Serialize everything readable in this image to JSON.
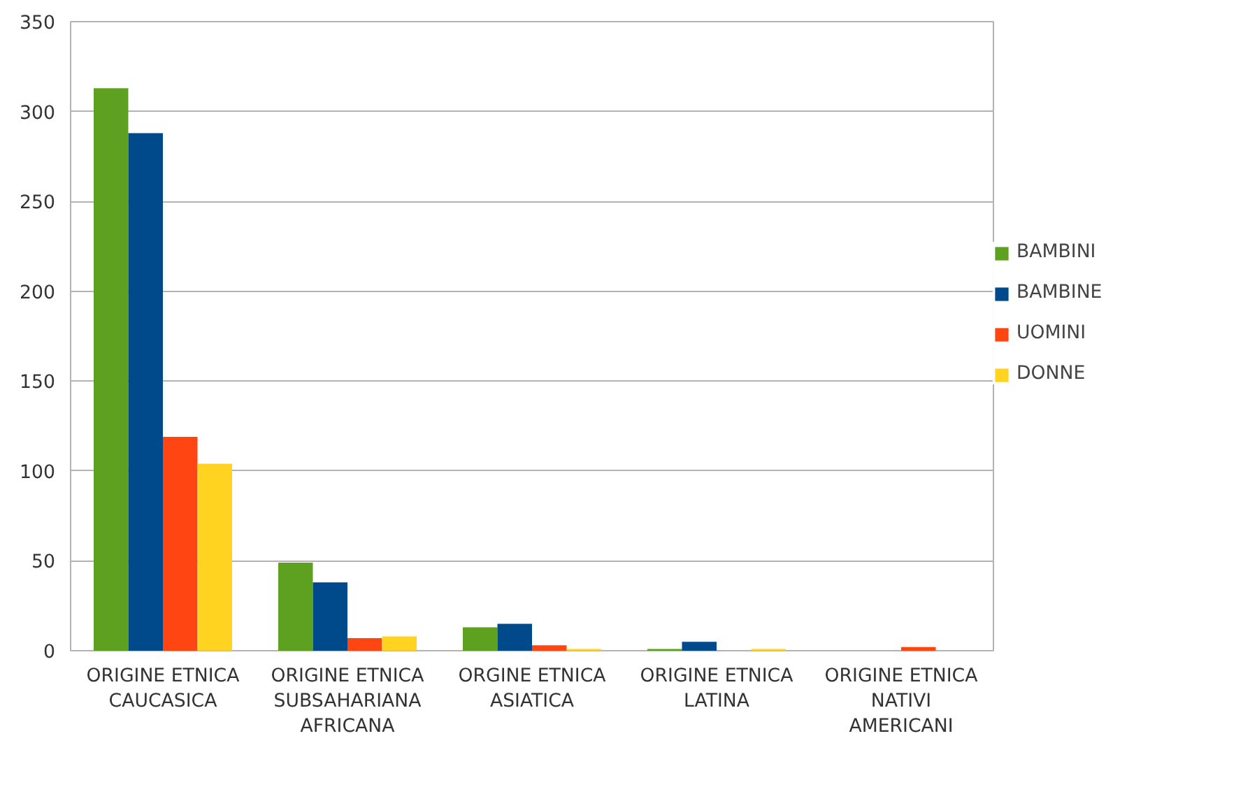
{
  "chart_data": {
    "type": "bar",
    "categories": [
      "ORIGINE ETNICA CAUCASICA",
      "ORIGINE ETNICA SUBSAHARIANA AFRICANA",
      "ORGINE ETNICA ASIATICA",
      "ORIGINE ETNICA LATINA",
      "ORIGINE ETNICA NATIVI AMERICANI"
    ],
    "series": [
      {
        "name": "BAMBINI",
        "color": "#5ea121",
        "values": [
          313,
          49,
          13,
          1,
          0
        ]
      },
      {
        "name": "BAMBINE",
        "color": "#004a8c",
        "values": [
          288,
          38,
          15,
          5,
          0
        ]
      },
      {
        "name": "UOMINI",
        "color": "#ff4512",
        "values": [
          119,
          7,
          3,
          0,
          2
        ]
      },
      {
        "name": "DONNE",
        "color": "#ffd320",
        "values": [
          104,
          8,
          1,
          1,
          0
        ]
      }
    ],
    "ylim": [
      0,
      350
    ],
    "yticks": [
      0,
      50,
      100,
      150,
      200,
      250,
      300,
      350
    ],
    "grid": "y",
    "legend": "right"
  }
}
